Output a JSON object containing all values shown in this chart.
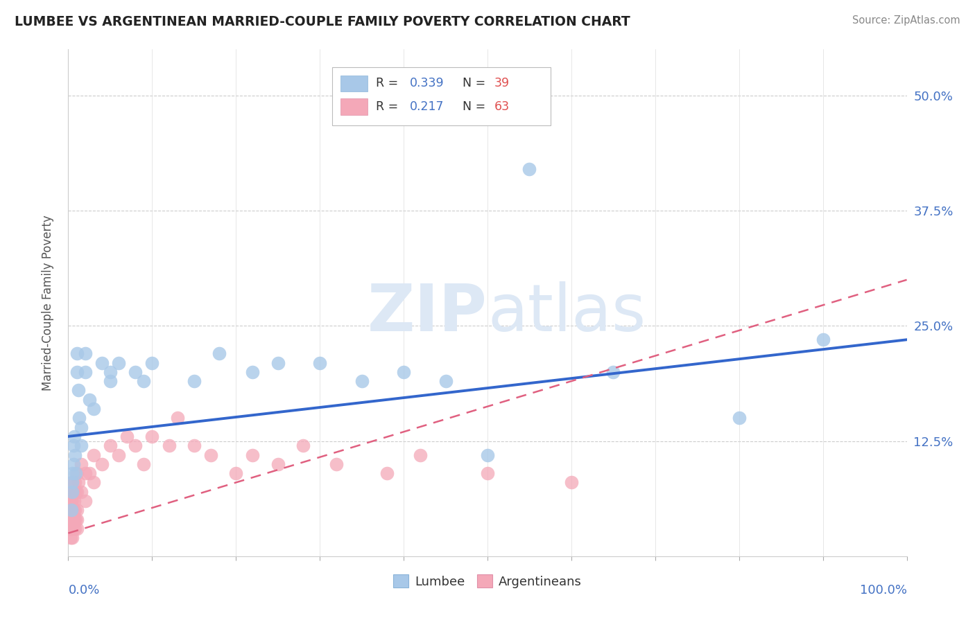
{
  "title": "LUMBEE VS ARGENTINEAN MARRIED-COUPLE FAMILY POVERTY CORRELATION CHART",
  "source": "Source: ZipAtlas.com",
  "ylabel": "Married-Couple Family Poverty",
  "xlim": [
    0.0,
    1.0
  ],
  "ylim": [
    0.0,
    0.55
  ],
  "yticks": [
    0.0,
    0.125,
    0.25,
    0.375,
    0.5
  ],
  "ytick_labels": [
    "",
    "12.5%",
    "25.0%",
    "37.5%",
    "50.0%"
  ],
  "lumbee_color": "#a8c8e8",
  "argentinean_color": "#f4a8b8",
  "lumbee_line_color": "#3366cc",
  "argentinean_line_color": "#e06080",
  "background_color": "#ffffff",
  "lum_x": [
    0.004,
    0.005,
    0.005,
    0.005,
    0.006,
    0.006,
    0.007,
    0.008,
    0.009,
    0.01,
    0.01,
    0.012,
    0.013,
    0.015,
    0.015,
    0.02,
    0.02,
    0.025,
    0.03,
    0.04,
    0.05,
    0.05,
    0.06,
    0.08,
    0.09,
    0.1,
    0.15,
    0.18,
    0.22,
    0.25,
    0.3,
    0.35,
    0.4,
    0.45,
    0.5,
    0.55,
    0.65,
    0.8,
    0.9
  ],
  "lum_y": [
    0.05,
    0.07,
    0.08,
    0.09,
    0.1,
    0.12,
    0.13,
    0.11,
    0.09,
    0.22,
    0.2,
    0.18,
    0.15,
    0.14,
    0.12,
    0.2,
    0.22,
    0.17,
    0.16,
    0.21,
    0.2,
    0.19,
    0.21,
    0.2,
    0.19,
    0.21,
    0.19,
    0.22,
    0.2,
    0.21,
    0.21,
    0.19,
    0.2,
    0.19,
    0.11,
    0.42,
    0.2,
    0.15,
    0.235
  ],
  "arg_x": [
    0.002,
    0.002,
    0.002,
    0.003,
    0.003,
    0.003,
    0.003,
    0.003,
    0.004,
    0.004,
    0.004,
    0.004,
    0.005,
    0.005,
    0.005,
    0.005,
    0.005,
    0.005,
    0.005,
    0.006,
    0.006,
    0.006,
    0.006,
    0.007,
    0.007,
    0.008,
    0.008,
    0.008,
    0.009,
    0.009,
    0.01,
    0.01,
    0.01,
    0.01,
    0.01,
    0.012,
    0.015,
    0.015,
    0.02,
    0.02,
    0.025,
    0.03,
    0.03,
    0.04,
    0.05,
    0.06,
    0.07,
    0.08,
    0.09,
    0.1,
    0.12,
    0.13,
    0.15,
    0.17,
    0.2,
    0.22,
    0.25,
    0.28,
    0.32,
    0.38,
    0.42,
    0.5,
    0.6
  ],
  "arg_y": [
    0.03,
    0.04,
    0.05,
    0.02,
    0.03,
    0.04,
    0.05,
    0.06,
    0.03,
    0.04,
    0.05,
    0.06,
    0.02,
    0.03,
    0.04,
    0.05,
    0.06,
    0.07,
    0.08,
    0.03,
    0.04,
    0.05,
    0.07,
    0.04,
    0.06,
    0.03,
    0.05,
    0.08,
    0.04,
    0.07,
    0.03,
    0.04,
    0.05,
    0.07,
    0.09,
    0.08,
    0.07,
    0.1,
    0.06,
    0.09,
    0.09,
    0.08,
    0.11,
    0.1,
    0.12,
    0.11,
    0.13,
    0.12,
    0.1,
    0.13,
    0.12,
    0.15,
    0.12,
    0.11,
    0.09,
    0.11,
    0.1,
    0.12,
    0.1,
    0.09,
    0.11,
    0.09,
    0.08
  ],
  "lum_line_x0": 0.0,
  "lum_line_y0": 0.13,
  "lum_line_x1": 1.0,
  "lum_line_y1": 0.235,
  "arg_line_x0": 0.0,
  "arg_line_y0": 0.025,
  "arg_line_x1": 1.0,
  "arg_line_y1": 0.3
}
